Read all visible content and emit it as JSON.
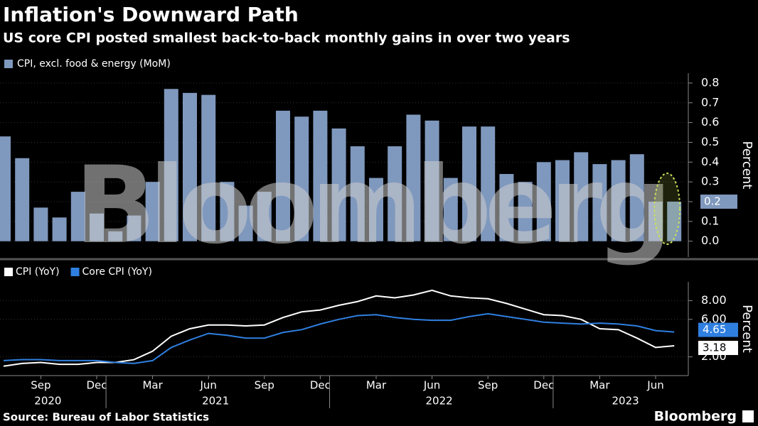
{
  "title": "Inflation's Downward Path",
  "subtitle": "US core CPI posted smallest back-to-back monthly gains in over two years",
  "source": "Source: Bureau of Labor Statistics",
  "brand": "Bloomberg",
  "chart_data": [
    {
      "type": "bar",
      "watermark": "Bloomberg",
      "x": [
        "2020-07",
        "2020-08",
        "2020-09",
        "2020-10",
        "2020-11",
        "2020-12",
        "2021-01",
        "2021-02",
        "2021-03",
        "2021-04",
        "2021-05",
        "2021-06",
        "2021-07",
        "2021-08",
        "2021-09",
        "2021-10",
        "2021-11",
        "2021-12",
        "2022-01",
        "2022-02",
        "2022-03",
        "2022-04",
        "2022-05",
        "2022-06",
        "2022-07",
        "2022-08",
        "2022-09",
        "2022-10",
        "2022-11",
        "2022-12",
        "2023-01",
        "2023-02",
        "2023-03",
        "2023-04",
        "2023-05",
        "2023-06",
        "2023-07"
      ],
      "series": [
        {
          "name": "CPI, excl. food & energy (MoM)",
          "color": "#7f98bd",
          "values": [
            0.53,
            0.42,
            0.17,
            0.12,
            0.25,
            0.14,
            0.05,
            0.13,
            0.3,
            0.77,
            0.75,
            0.74,
            0.3,
            0.18,
            0.25,
            0.66,
            0.63,
            0.66,
            0.57,
            0.48,
            0.32,
            0.48,
            0.64,
            0.61,
            0.32,
            0.58,
            0.58,
            0.34,
            0.3,
            0.4,
            0.41,
            0.45,
            0.39,
            0.41,
            0.44,
            0.2,
            0.2
          ]
        }
      ],
      "ylim": [
        -0.08,
        0.85
      ],
      "yticks": [
        {
          "value": 0,
          "label": "0.0"
        },
        {
          "value": 0.1,
          "label": "0.1"
        },
        {
          "value": 0.2,
          "label": "0.2"
        },
        {
          "value": 0.3,
          "label": "0.3"
        },
        {
          "value": 0.4,
          "label": "0.4"
        },
        {
          "value": 0.5,
          "label": "0.5"
        },
        {
          "value": 0.6,
          "label": "0.6"
        },
        {
          "value": 0.7,
          "label": "0.7"
        },
        {
          "value": 0.8,
          "label": "0.8"
        }
      ],
      "ylabel": "Percent"
    },
    {
      "type": "line",
      "x": [
        "2020-07",
        "2020-08",
        "2020-09",
        "2020-10",
        "2020-11",
        "2020-12",
        "2021-01",
        "2021-02",
        "2021-03",
        "2021-04",
        "2021-05",
        "2021-06",
        "2021-07",
        "2021-08",
        "2021-09",
        "2021-10",
        "2021-11",
        "2021-12",
        "2022-01",
        "2022-02",
        "2022-03",
        "2022-04",
        "2022-05",
        "2022-06",
        "2022-07",
        "2022-08",
        "2022-09",
        "2022-10",
        "2022-11",
        "2022-12",
        "2023-01",
        "2023-02",
        "2023-03",
        "2023-04",
        "2023-05",
        "2023-06",
        "2023-07"
      ],
      "series": [
        {
          "name": "CPI (YoY)",
          "color": "#ffffff",
          "values": [
            1.0,
            1.3,
            1.4,
            1.2,
            1.2,
            1.4,
            1.4,
            1.7,
            2.6,
            4.2,
            5.0,
            5.4,
            5.4,
            5.3,
            5.4,
            6.2,
            6.8,
            7.0,
            7.5,
            7.9,
            8.5,
            8.3,
            8.6,
            9.1,
            8.5,
            8.3,
            8.2,
            7.7,
            7.1,
            6.5,
            6.4,
            6.0,
            5.0,
            4.9,
            4.0,
            3.0,
            3.18
          ]
        },
        {
          "name": "Core CPI (YoY)",
          "color": "#2f7fe0",
          "values": [
            1.6,
            1.7,
            1.7,
            1.6,
            1.6,
            1.6,
            1.4,
            1.3,
            1.6,
            3.0,
            3.8,
            4.5,
            4.3,
            4.0,
            4.0,
            4.6,
            4.9,
            5.5,
            6.0,
            6.4,
            6.5,
            6.2,
            6.0,
            5.9,
            5.9,
            6.3,
            6.6,
            6.3,
            6.0,
            5.7,
            5.6,
            5.5,
            5.6,
            5.5,
            5.3,
            4.8,
            4.65
          ]
        }
      ],
      "ylim": [
        0,
        10
      ],
      "yticks": [
        {
          "value": 2,
          "label": "2.00"
        },
        {
          "value": 6,
          "label": "6.00"
        },
        {
          "value": 8,
          "label": "8.00"
        }
      ],
      "ylabel": "Percent",
      "xticks": [
        {
          "value": "2020-09",
          "label": "Sep"
        },
        {
          "value": "2020-12",
          "label": "Dec"
        },
        {
          "value": "2021-03",
          "label": "Mar"
        },
        {
          "value": "2021-06",
          "label": "Jun"
        },
        {
          "value": "2021-09",
          "label": "Sep"
        },
        {
          "value": "2021-12",
          "label": "Dec"
        },
        {
          "value": "2022-03",
          "label": "Mar"
        },
        {
          "value": "2022-06",
          "label": "Jun"
        },
        {
          "value": "2022-09",
          "label": "Sep"
        },
        {
          "value": "2022-12",
          "label": "Dec"
        },
        {
          "value": "2023-03",
          "label": "Mar"
        },
        {
          "value": "2023-06",
          "label": "Jun"
        }
      ],
      "year_labels": [
        {
          "value": "2020-09",
          "label": "2020"
        },
        {
          "value": "2021-06",
          "label": "2021"
        },
        {
          "value": "2022-06",
          "label": "2022"
        },
        {
          "value": "2023-04",
          "label": "2023"
        }
      ]
    }
  ]
}
